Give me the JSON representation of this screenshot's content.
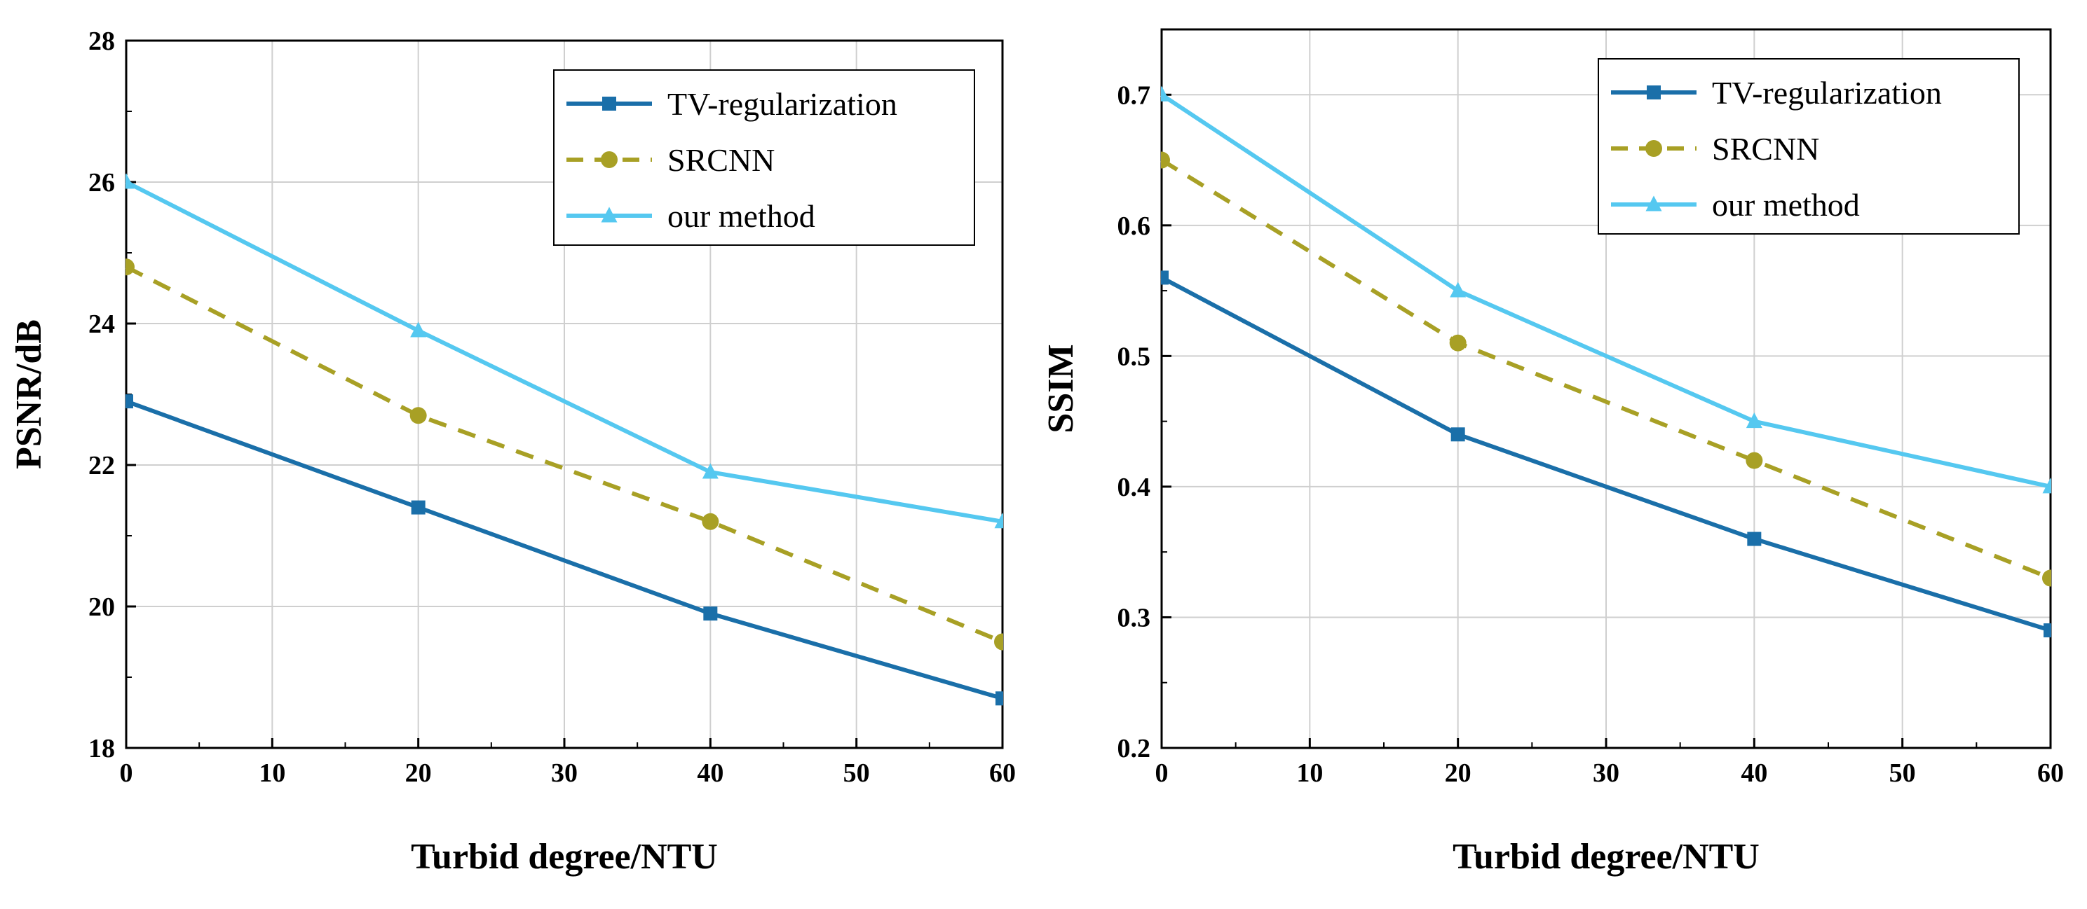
{
  "colors": {
    "tv": "#1a6fa9",
    "srcnn": "#a8a025",
    "ours": "#55c8f0",
    "grid": "#cfcfcf",
    "axis": "#000000"
  },
  "chart_data": [
    {
      "type": "line",
      "title": "",
      "xlabel": "Turbid degree/NTU",
      "ylabel": "PSNR/dB",
      "xlim": [
        0,
        60
      ],
      "ylim": [
        18,
        28
      ],
      "xticks": [
        0,
        10,
        20,
        30,
        40,
        50,
        60
      ],
      "yticks": [
        18,
        20,
        22,
        24,
        26,
        28
      ],
      "grid": true,
      "legend_position": "top-right",
      "x": [
        0,
        20,
        40,
        60
      ],
      "series": [
        {
          "name": "TV-regularization",
          "values": [
            22.9,
            21.4,
            19.9,
            18.7
          ],
          "marker": "square",
          "dash": "solid",
          "color_key": "tv"
        },
        {
          "name": "SRCNN",
          "values": [
            24.8,
            22.7,
            21.2,
            19.5
          ],
          "marker": "circle",
          "dash": "dashed",
          "color_key": "srcnn"
        },
        {
          "name": "our method",
          "values": [
            26.0,
            23.9,
            21.9,
            21.2
          ],
          "marker": "triangle",
          "dash": "solid",
          "color_key": "ours"
        }
      ]
    },
    {
      "type": "line",
      "title": "",
      "xlabel": "Turbid degree/NTU",
      "ylabel": "SSIM",
      "xlim": [
        0,
        60
      ],
      "ylim": [
        0.2,
        0.75
      ],
      "xticks": [
        0,
        10,
        20,
        30,
        40,
        50,
        60
      ],
      "yticks": [
        0.2,
        0.3,
        0.4,
        0.5,
        0.6,
        0.7
      ],
      "grid": true,
      "legend_position": "top-right",
      "x": [
        0,
        20,
        40,
        60
      ],
      "series": [
        {
          "name": "TV-regularization",
          "values": [
            0.56,
            0.44,
            0.36,
            0.29
          ],
          "marker": "square",
          "dash": "solid",
          "color_key": "tv"
        },
        {
          "name": "SRCNN",
          "values": [
            0.65,
            0.51,
            0.42,
            0.33
          ],
          "marker": "circle",
          "dash": "dashed",
          "color_key": "srcnn"
        },
        {
          "name": "our method",
          "values": [
            0.7,
            0.55,
            0.45,
            0.4
          ],
          "marker": "triangle",
          "dash": "solid",
          "color_key": "ours"
        }
      ]
    }
  ]
}
